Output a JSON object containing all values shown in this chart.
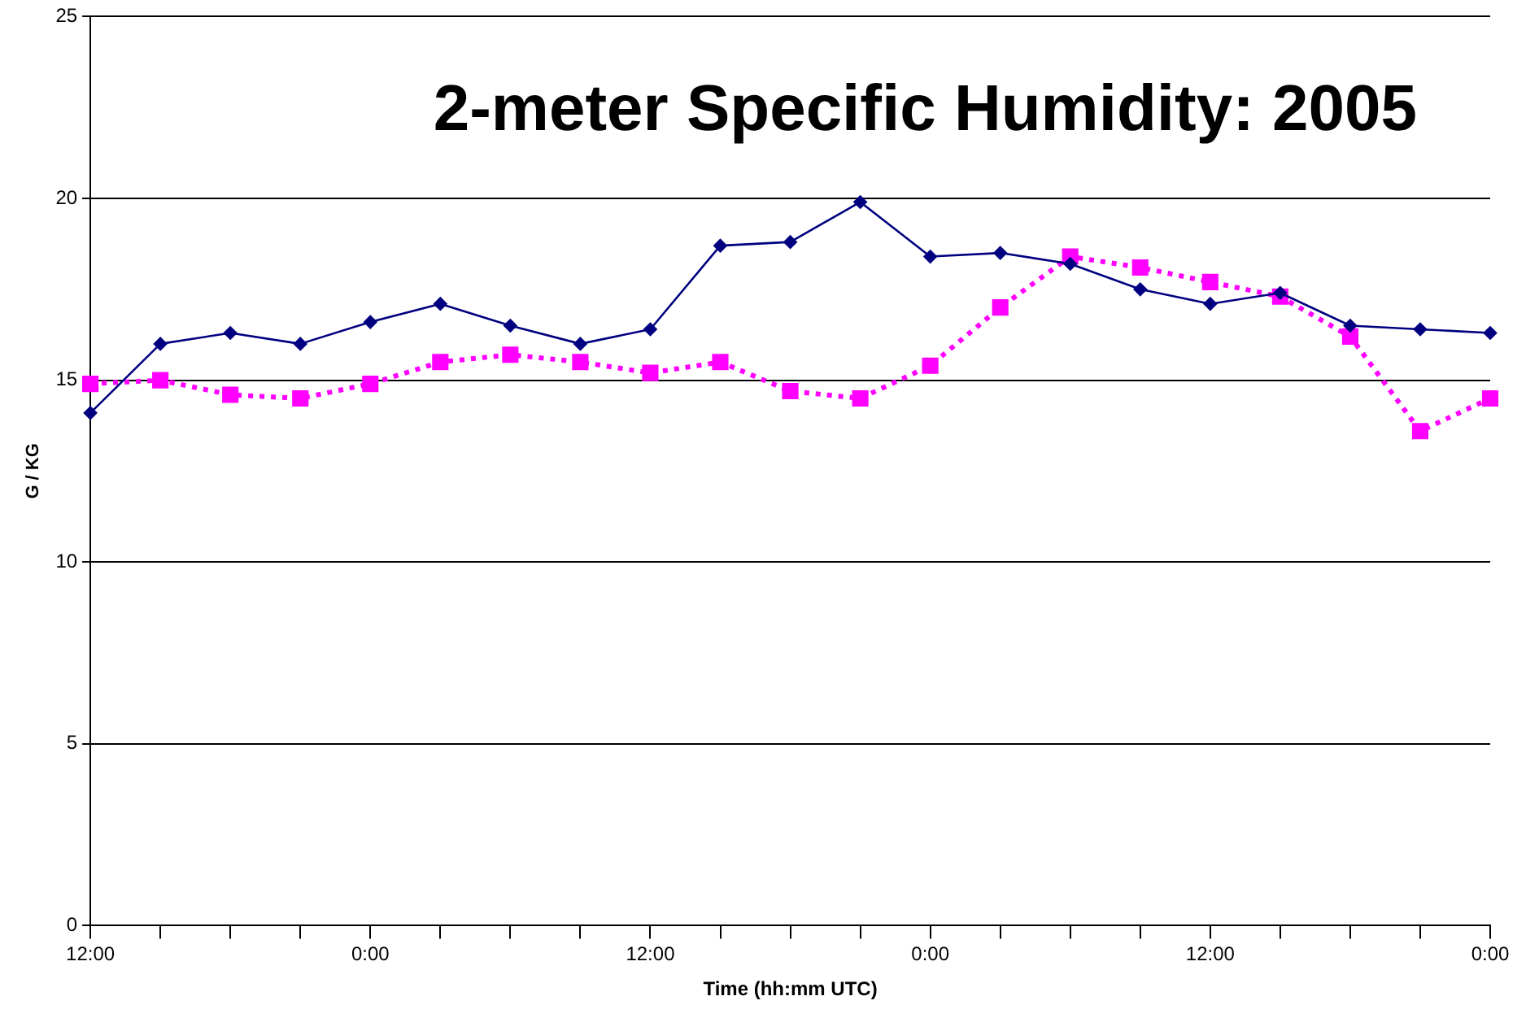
{
  "chart_data": {
    "type": "line",
    "title": "2-meter Specific Humidity: 2005",
    "xlabel": "Time (hh:mm UTC)",
    "ylabel": "G / KG",
    "categories": [
      "12:00",
      null,
      null,
      null,
      "0:00",
      null,
      null,
      null,
      "12:00",
      null,
      null,
      null,
      "0:00",
      null,
      null,
      null,
      "12:00",
      null,
      null,
      null,
      "0:00"
    ],
    "series": [
      {
        "color": "#000080",
        "marker": "diamond",
        "line_style": "solid",
        "values": [
          14.1,
          16.0,
          16.3,
          16.0,
          16.6,
          17.1,
          16.5,
          16.0,
          16.4,
          18.7,
          18.8,
          19.9,
          18.4,
          18.5,
          18.2,
          17.5,
          17.1,
          17.4,
          16.5,
          16.4,
          16.3
        ]
      },
      {
        "color": "#ff00ff",
        "marker": "square",
        "line_style": "dotted",
        "values": [
          14.9,
          15.0,
          14.6,
          14.5,
          14.9,
          15.5,
          15.7,
          15.5,
          15.2,
          15.5,
          14.7,
          14.5,
          15.4,
          17.0,
          18.4,
          18.1,
          17.7,
          17.3,
          16.2,
          13.6,
          14.5
        ]
      }
    ],
    "ylim": [
      0,
      25
    ],
    "yticks": [
      0,
      5,
      10,
      15,
      20,
      25
    ],
    "grid": "y",
    "legend": false
  }
}
